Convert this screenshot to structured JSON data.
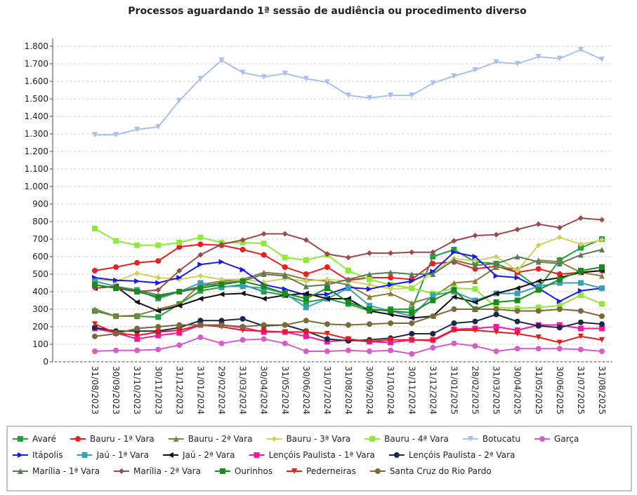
{
  "chart_data": {
    "type": "line",
    "title": "Processos aguardando 1ª sessão de audiência ou procedimento diverso",
    "categories": [
      "31/08/2023",
      "30/09/2023",
      "31/10/2023",
      "30/11/2023",
      "31/12/2023",
      "31/01/2024",
      "29/02/2024",
      "31/03/2024",
      "30/04/2024",
      "31/05/2024",
      "30/06/2024",
      "31/07/2024",
      "31/08/2024",
      "30/09/2024",
      "31/10/2024",
      "30/11/2024",
      "31/12/2024",
      "31/01/2025",
      "28/02/2025",
      "31/03/2025",
      "30/04/2025",
      "31/05/2025",
      "30/06/2025",
      "31/07/2025",
      "31/08/2025"
    ],
    "ylim": [
      0,
      1800
    ],
    "yticks": [
      0,
      100,
      200,
      300,
      400,
      500,
      600,
      700,
      800,
      900,
      {
        "value": 1000,
        "label": "1.000"
      },
      {
        "value": 1100,
        "label": "1.100"
      },
      {
        "value": 1200,
        "label": "1.200"
      },
      {
        "value": 1300,
        "label": "1.300"
      },
      {
        "value": 1400,
        "label": "1.400"
      },
      {
        "value": 1500,
        "label": "1.500"
      },
      {
        "value": 1600,
        "label": "1.600"
      },
      {
        "value": 1700,
        "label": "1.700"
      },
      {
        "value": 1800,
        "label": "1.800"
      }
    ],
    "grid": true,
    "series": [
      {
        "name": "Avaré",
        "color": "#22a03a",
        "marker": "square",
        "values": [
          290,
          260,
          260,
          255,
          330,
          405,
          425,
          440,
          400,
          380,
          340,
          360,
          330,
          290,
          300,
          300,
          600,
          640,
          570,
          560,
          510,
          420,
          580,
          650,
          700
        ]
      },
      {
        "name": "Bauru - 1ª Vara",
        "color": "#e8201e",
        "marker": "circle",
        "values": [
          520,
          540,
          565,
          575,
          655,
          670,
          665,
          640,
          610,
          540,
          500,
          540,
          465,
          480,
          480,
          470,
          560,
          570,
          530,
          545,
          510,
          530,
          500,
          510,
          520
        ]
      },
      {
        "name": "Bauru - 2ª Vara",
        "color": "#8b7d3a",
        "marker": "triangle-up",
        "values": [
          300,
          260,
          265,
          300,
          330,
          440,
          460,
          470,
          510,
          500,
          470,
          460,
          440,
          370,
          390,
          335,
          370,
          450,
          460,
          540,
          530,
          580,
          570,
          510,
          490
        ]
      },
      {
        "name": "Bauru - 3ª Vara",
        "color": "#d4cf5a",
        "marker": "diamond",
        "values": [
          470,
          460,
          505,
          480,
          470,
          490,
          470,
          470,
          455,
          475,
          460,
          470,
          460,
          440,
          415,
          420,
          510,
          590,
          575,
          600,
          520,
          665,
          710,
          670,
          695
        ]
      },
      {
        "name": "Bauru - 4ª Vara",
        "color": "#8fe83a",
        "marker": "square",
        "values": [
          760,
          690,
          665,
          665,
          680,
          710,
          680,
          680,
          675,
          595,
          580,
          610,
          520,
          470,
          440,
          420,
          390,
          420,
          415,
          310,
          305,
          310,
          320,
          380,
          330
        ]
      },
      {
        "name": "Botucatu",
        "color": "#a8c0f0",
        "marker": "triangle-down",
        "values": [
          1295,
          1295,
          1325,
          1340,
          1490,
          1615,
          1720,
          1650,
          1625,
          1645,
          1615,
          1595,
          1520,
          1505,
          1520,
          1520,
          1590,
          1630,
          1665,
          1710,
          1700,
          1740,
          1730,
          1780,
          1725
        ]
      },
      {
        "name": "Garça",
        "color": "#d65cc8",
        "marker": "circle",
        "values": [
          60,
          65,
          65,
          70,
          95,
          140,
          105,
          125,
          130,
          105,
          60,
          60,
          65,
          60,
          65,
          45,
          80,
          105,
          90,
          60,
          75,
          75,
          75,
          70,
          60
        ]
      },
      {
        "name": "Itápolis",
        "color": "#1a1ae6",
        "marker": "triangle-right",
        "values": [
          480,
          465,
          460,
          450,
          480,
          555,
          570,
          525,
          440,
          415,
          380,
          385,
          425,
          415,
          440,
          460,
          515,
          625,
          600,
          490,
          480,
          420,
          345,
          405,
          420
        ]
      },
      {
        "name": "Jaú - 1ª Vara",
        "color": "#3aa0b8",
        "marker": "square",
        "values": [
          460,
          430,
          410,
          360,
          400,
          450,
          430,
          430,
          420,
          390,
          310,
          360,
          420,
          320,
          290,
          260,
          380,
          400,
          350,
          390,
          390,
          430,
          450,
          450,
          420
        ]
      },
      {
        "name": "Jaú - 2ª Vara",
        "color": "#111111",
        "marker": "triangle-left",
        "values": [
          420,
          430,
          340,
          290,
          320,
          360,
          385,
          390,
          360,
          380,
          390,
          360,
          360,
          290,
          270,
          250,
          260,
          370,
          340,
          390,
          420,
          460,
          480,
          510,
          520
        ]
      },
      {
        "name": "Lençóis Paulista - 1ª Vara",
        "color": "#f01aa0",
        "marker": "square",
        "values": [
          190,
          165,
          130,
          150,
          165,
          210,
          210,
          195,
          170,
          170,
          145,
          115,
          125,
          115,
          110,
          125,
          125,
          185,
          190,
          200,
          180,
          210,
          210,
          190,
          190
        ]
      },
      {
        "name": "Lençóis Paulista - 2ª Vara",
        "color": "#1c2a4a",
        "marker": "circle",
        "values": [
          195,
          175,
          175,
          175,
          195,
          235,
          235,
          245,
          205,
          210,
          175,
          130,
          120,
          125,
          135,
          160,
          160,
          220,
          230,
          270,
          230,
          205,
          195,
          225,
          215
        ]
      },
      {
        "name": "Marília - 1ª Vara",
        "color": "#5a7a5a",
        "marker": "triangle-up",
        "values": [
          440,
          420,
          410,
          380,
          400,
          430,
          450,
          460,
          500,
          490,
          430,
          440,
          470,
          500,
          510,
          500,
          500,
          580,
          550,
          560,
          600,
          570,
          560,
          610,
          640
        ]
      },
      {
        "name": "Marília - 2ª Vara",
        "color": "#9a4a4a",
        "marker": "diamond",
        "values": [
          420,
          430,
          400,
          410,
          520,
          610,
          670,
          695,
          730,
          730,
          695,
          615,
          595,
          620,
          620,
          625,
          625,
          690,
          720,
          725,
          755,
          785,
          765,
          820,
          810
        ]
      },
      {
        "name": "Ourinhos",
        "color": "#1a8a1a",
        "marker": "square",
        "values": [
          440,
          420,
          400,
          370,
          400,
          420,
          440,
          460,
          430,
          390,
          360,
          420,
          340,
          300,
          290,
          280,
          350,
          410,
          300,
          340,
          350,
          410,
          470,
          520,
          540
        ]
      },
      {
        "name": "Pederneiras",
        "color": "#e81a1a",
        "marker": "triangle-down",
        "values": [
          215,
          165,
          150,
          170,
          180,
          210,
          200,
          180,
          175,
          170,
          170,
          160,
          130,
          115,
          125,
          125,
          120,
          180,
          180,
          170,
          160,
          140,
          110,
          145,
          125
        ]
      },
      {
        "name": "Santa Cruz do Rio Pardo",
        "color": "#7a6a3a",
        "marker": "circle",
        "values": [
          145,
          160,
          190,
          200,
          210,
          210,
          210,
          200,
          210,
          210,
          235,
          215,
          210,
          215,
          220,
          220,
          260,
          300,
          300,
          300,
          290,
          290,
          300,
          290,
          260
        ]
      }
    ]
  }
}
